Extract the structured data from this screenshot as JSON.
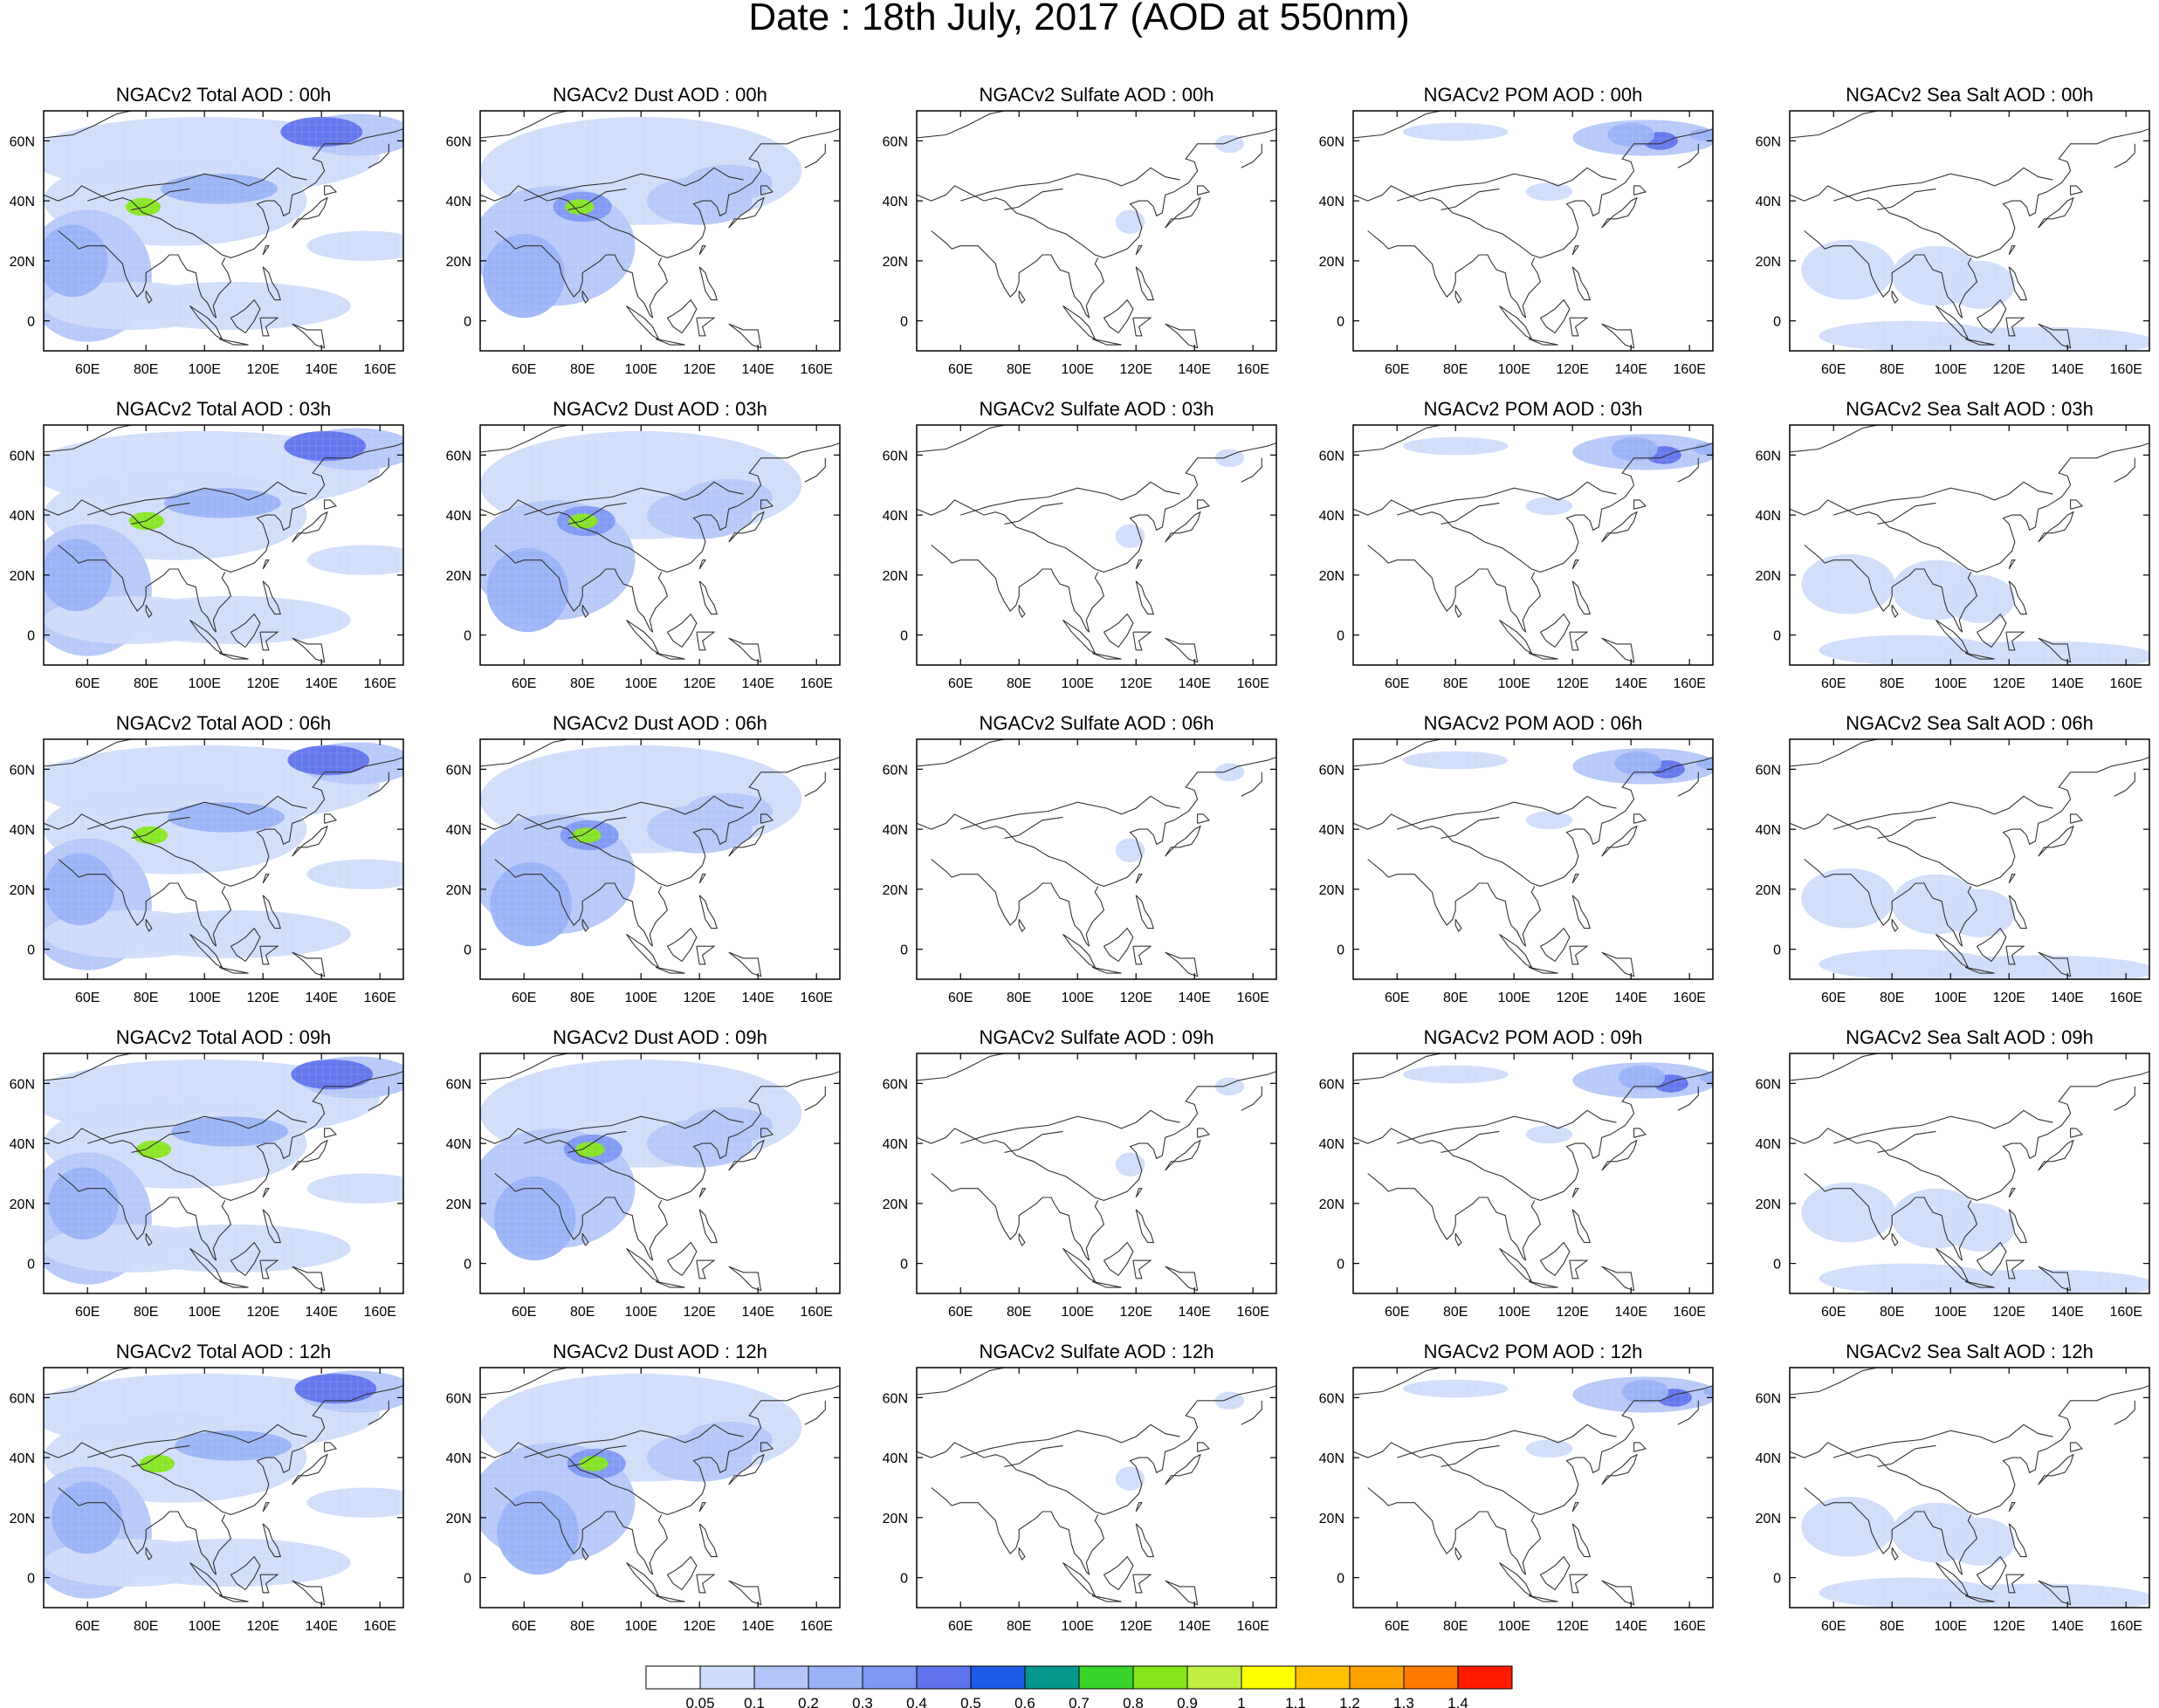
{
  "figure": {
    "title": "Date : 18th July, 2017 (AOD at 550nm)"
  },
  "axes": {
    "lat_ticks": [
      "60N",
      "40N",
      "20N",
      "0"
    ],
    "lon_ticks": [
      "60E",
      "80E",
      "100E",
      "120E",
      "140E",
      "160E"
    ]
  },
  "panel_rows": [
    [
      "NGACv2 Total AOD : 00h",
      "NGACv2 Dust AOD : 00h",
      "NGACv2 Sulfate AOD : 00h",
      "NGACv2 POM AOD : 00h",
      "NGACv2 Sea Salt AOD : 00h"
    ],
    [
      "NGACv2 Total AOD : 03h",
      "NGACv2 Dust AOD : 03h",
      "NGACv2 Sulfate AOD : 03h",
      "NGACv2 POM AOD : 03h",
      "NGACv2 Sea Salt AOD : 03h"
    ],
    [
      "NGACv2 Total AOD : 06h",
      "NGACv2 Dust AOD : 06h",
      "NGACv2 Sulfate AOD : 06h",
      "NGACv2 POM AOD : 06h",
      "NGACv2 Sea Salt AOD : 06h"
    ],
    [
      "NGACv2 Total AOD : 09h",
      "NGACv2 Dust AOD : 09h",
      "NGACv2 Sulfate AOD : 09h",
      "NGACv2 POM AOD : 09h",
      "NGACv2 Sea Salt  AOD : 09h"
    ],
    [
      "NGACv2 Total AOD  : 12h",
      "NGACv2 Dust AOD : 12h",
      "NGACv2 Sulfate AOD : 12h",
      "NGACv2 POM  AOD : 12h",
      "NGACv2 Sea Salt  AOD : 12h"
    ]
  ],
  "colorbar": {
    "labels": [
      "0.05",
      "0.1",
      "0.2",
      "0.3",
      "0.4",
      "0.5",
      "0.6",
      "0.7",
      "0.8",
      "0.9",
      "1",
      "1.1",
      "1.2",
      "1.3",
      "1.4"
    ],
    "colors": [
      "#ffffff",
      "#cfdcfa",
      "#b3c6f8",
      "#98b2f6",
      "#7d98f2",
      "#5f73ec",
      "#1c5ae8",
      "#05968e",
      "#38d62a",
      "#86e61a",
      "#c0ef42",
      "#ffff00",
      "#ffc000",
      "#ffa200",
      "#ff7a00",
      "#ff1a00"
    ]
  }
}
